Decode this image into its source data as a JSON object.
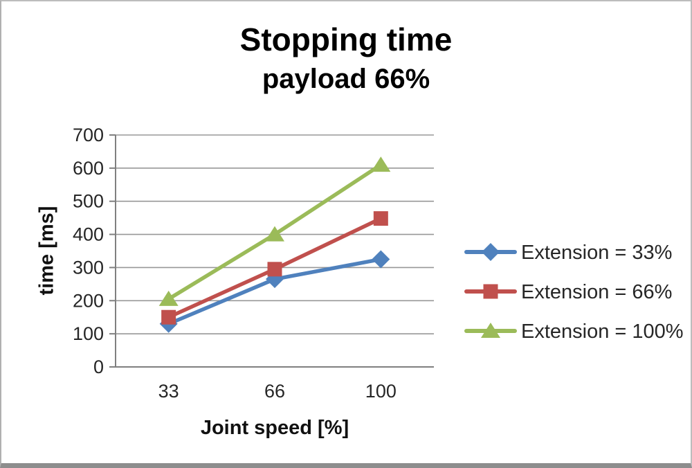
{
  "chart_data": {
    "type": "line",
    "title": "Stopping time",
    "subtitle": "payload 66%",
    "categories": [
      "33",
      "66",
      "100"
    ],
    "series": [
      {
        "name": "Extension = 33%",
        "marker": "diamond",
        "color": "#4F81BD",
        "values": [
          130,
          265,
          325
        ]
      },
      {
        "name": "Extension = 66%",
        "marker": "square",
        "color": "#C0504D",
        "values": [
          150,
          295,
          448
        ]
      },
      {
        "name": "Extension = 100%",
        "marker": "triangle",
        "color": "#9BBB59",
        "values": [
          205,
          400,
          610
        ]
      }
    ],
    "xlabel": "Joint speed [%]",
    "ylabel": "time [ms]",
    "ylim": [
      0,
      700
    ],
    "yticks": [
      0,
      100,
      200,
      300,
      400,
      500,
      600,
      700
    ],
    "grid": true,
    "legend_position": "right",
    "gridline_color": "#979797",
    "axis_color": "#7f7f7f",
    "text_color": "#262626"
  }
}
